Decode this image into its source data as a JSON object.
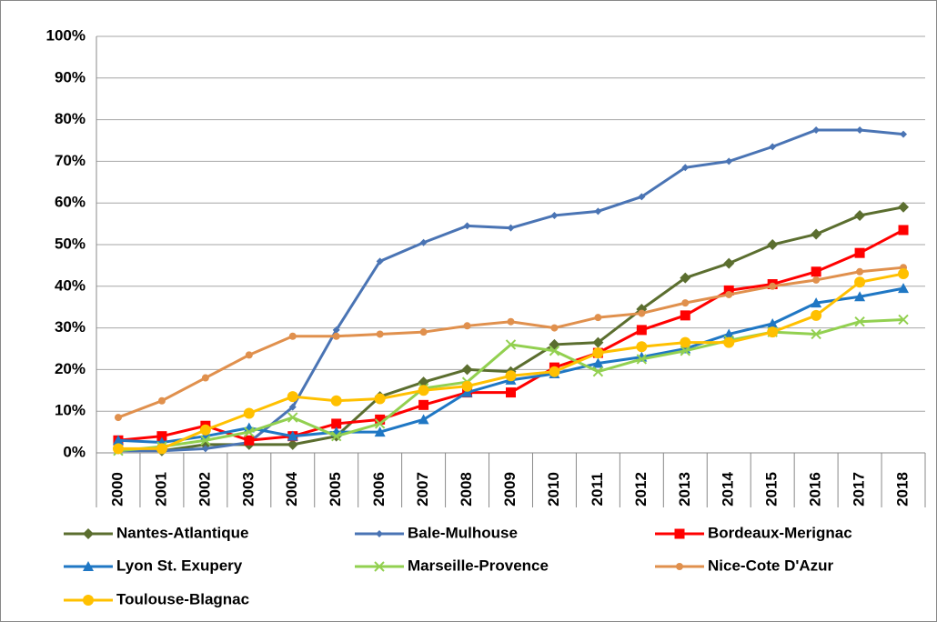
{
  "chart_data": {
    "type": "line",
    "categories": [
      "2000",
      "2001",
      "2002",
      "2003",
      "2004",
      "2005",
      "2006",
      "2007",
      "2008",
      "2009",
      "2010",
      "2011",
      "2012",
      "2013",
      "2014",
      "2015",
      "2016",
      "2017",
      "2018"
    ],
    "ylim": [
      0,
      100
    ],
    "yticks": [
      {
        "value": 0,
        "label": "0%"
      },
      {
        "value": 10,
        "label": "10%"
      },
      {
        "value": 20,
        "label": "20%"
      },
      {
        "value": 30,
        "label": "30%"
      },
      {
        "value": 40,
        "label": "40%"
      },
      {
        "value": 50,
        "label": "50%"
      },
      {
        "value": 60,
        "label": "60%"
      },
      {
        "value": 70,
        "label": "70%"
      },
      {
        "value": 80,
        "label": "80%"
      },
      {
        "value": 90,
        "label": "90%"
      },
      {
        "value": 100,
        "label": "100%"
      }
    ],
    "grid": true,
    "legend": "bottom",
    "series": [
      {
        "name": "Nantes-Atlantique",
        "color": "#5b6e2f",
        "marker": "diamond",
        "values": [
          1,
          0.5,
          2,
          2,
          2,
          4,
          13.5,
          17,
          20,
          19.5,
          26,
          26.5,
          34.5,
          42,
          45.5,
          50,
          52.5,
          57,
          59
        ]
      },
      {
        "name": "Bale-Mulhouse",
        "color": "#4a74b4",
        "marker": "small-diamond",
        "values": [
          0.5,
          0.5,
          1,
          2.5,
          11,
          29.5,
          46,
          50.5,
          54.5,
          54,
          57,
          58,
          61.5,
          68.5,
          70,
          73.5,
          77.5,
          77.5,
          76.5
        ]
      },
      {
        "name": "Bordeaux-Merignac",
        "color": "#ff0000",
        "marker": "square",
        "values": [
          3,
          4,
          6.5,
          3,
          4,
          7,
          8,
          11.5,
          14.5,
          14.5,
          20.5,
          24,
          29.5,
          33,
          39,
          40.5,
          43.5,
          48,
          53.5
        ]
      },
      {
        "name": "Lyon St. Exupery",
        "color": "#1f77c4",
        "marker": "triangle",
        "values": [
          3,
          2.5,
          4,
          6,
          4,
          5,
          5,
          8,
          14.5,
          17.5,
          19,
          21.5,
          23,
          25,
          28.5,
          31,
          36,
          37.5,
          39.5
        ]
      },
      {
        "name": "Marseille-Provence",
        "color": "#92d050",
        "marker": "x",
        "values": [
          0.5,
          1.5,
          3,
          5,
          8.5,
          4,
          7,
          15.5,
          17,
          26,
          24.5,
          19.5,
          22.5,
          24.5,
          27,
          29,
          28.5,
          31.5,
          32
        ]
      },
      {
        "name": "Nice-Cote D'Azur",
        "color": "#e0904d",
        "marker": "circle",
        "values": [
          8.5,
          12.5,
          18,
          23.5,
          28,
          28,
          28.5,
          29,
          30.5,
          31.5,
          30,
          32.5,
          33.5,
          36,
          38,
          40,
          41.5,
          43.5,
          44.5
        ]
      },
      {
        "name": "Toulouse-Blagnac",
        "color": "#ffc000",
        "marker": "big-circle",
        "values": [
          1,
          1,
          5.5,
          9.5,
          13.5,
          12.5,
          13,
          15,
          16,
          18.5,
          19.5,
          24,
          25.5,
          26.5,
          26.5,
          29,
          33,
          41,
          43
        ]
      }
    ]
  }
}
